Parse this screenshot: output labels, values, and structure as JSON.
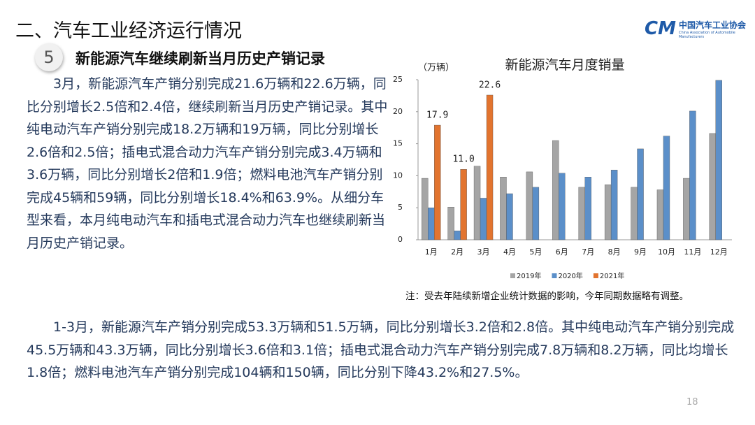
{
  "header": {
    "title": "二、汽车工业经济运行情况",
    "logo_mark": "CM",
    "logo_name": "中国汽车工业协会",
    "logo_english": "China Association of Automobile Manufacturers"
  },
  "section": {
    "number": "5",
    "title": "新能源汽车继续刷新当月历史产销记录"
  },
  "paragraphs": [
    "3月，新能源汽车产销分别完成21.6万辆和22.6万辆，同比分别增长2.5倍和2.4倍，继续刷新当月历史产销记录。其中纯电动汽车产销分别完成18.2万辆和19万辆，同比分别增长2.6倍和2.5倍；插电式混合动力汽车产销分别完成3.4万辆和3.6万辆，同比分别增长2倍和1.9倍；燃料电池汽车产销分别完成45辆和59辆，同比分别增长18.4%和63.9%。从细分车型来看，本月纯电动汽车和插电式混合动力汽车也继续刷新当月历史产销记录。",
    "1-3月，新能源汽车产销分别完成53.3万辆和51.5万辆，同比分别增长3.2倍和2.8倍。其中纯电动汽车产销分别完成45.5万辆和43.3万辆，同比分别增长3.6倍和3.1倍；插电式混合动力汽车产销分别完成7.8万辆和8.2万辆，同比均增长1.8倍；燃料电池汽车产销分别完成104辆和150辆，同比分别下降43.2%和27.5%。"
  ],
  "note": "注：受去年陆续新增企业统计数据的影响，今年同期数据略有调整。",
  "page_number": "18",
  "chart_data": {
    "type": "bar",
    "title": "新能源汽车月度销量",
    "y_label": "（万辆）",
    "categories": [
      "1月",
      "2月",
      "3月",
      "4月",
      "5月",
      "6月",
      "7月",
      "8月",
      "9月",
      "10月",
      "11月",
      "12月"
    ],
    "series": [
      {
        "name": "2019年",
        "color": "#a5a5a5",
        "values": [
          9.6,
          5.1,
          11.5,
          9.8,
          10.6,
          15.5,
          8.2,
          8.6,
          8.2,
          7.8,
          9.6,
          16.6
        ]
      },
      {
        "name": "2020年",
        "color": "#5b8fc9",
        "values": [
          5.0,
          1.4,
          6.5,
          7.2,
          8.2,
          10.4,
          9.8,
          10.9,
          14.2,
          16.2,
          20.1,
          24.9
        ]
      },
      {
        "name": "2021年",
        "color": "#e2742f",
        "values": [
          17.9,
          11.0,
          22.6,
          null,
          null,
          null,
          null,
          null,
          null,
          null,
          null,
          null
        ],
        "value_labels": [
          "17.9",
          "11.0",
          "22.6",
          null,
          null,
          null,
          null,
          null,
          null,
          null,
          null,
          null
        ]
      }
    ],
    "ylim": [
      0,
      25
    ],
    "yticks": [
      0,
      5,
      10,
      15,
      20,
      25
    ],
    "grid": false,
    "legend": "bottom"
  }
}
